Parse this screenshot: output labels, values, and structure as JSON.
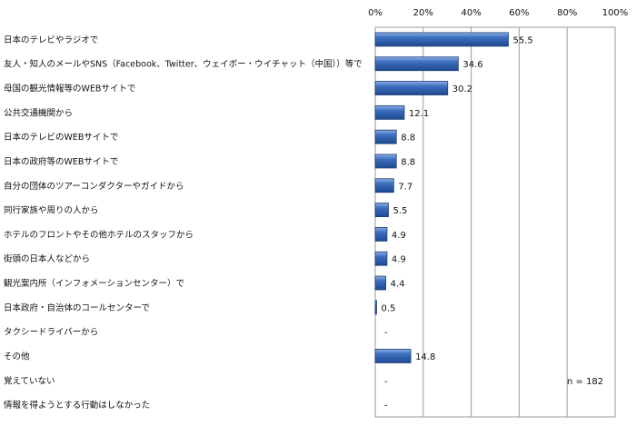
{
  "chart_data": {
    "type": "bar",
    "orientation": "horizontal",
    "categories": [
      "日本のテレビやラジオで",
      "友人・知人のメールやSNS（Facebook、Twitter、ウェイボー・ウイチャット（中国））等で",
      "母国の観光情報等のWEBサイトで",
      "公共交通機関から",
      "日本のテレビのWEBサイトで",
      "日本の政府等のWEBサイトで",
      "自分の団体のツアーコンダクターやガイドから",
      "同行家族や周りの人から",
      "ホテルのフロントやその他ホテルのスタッフから",
      "街頭の日本人などから",
      "観光案内所（インフォメーションセンター）で",
      "日本政府・自治体のコールセンターで",
      "タクシードライバーから",
      "その他",
      "覚えていない",
      "情報を得ようとする行動はしなかった"
    ],
    "values": [
      55.5,
      34.6,
      30.2,
      12.1,
      8.8,
      8.8,
      7.7,
      5.5,
      4.9,
      4.9,
      4.4,
      0.5,
      null,
      14.8,
      null,
      null
    ],
    "value_labels": [
      "55.5",
      "34.6",
      "30.2",
      "12.1",
      "8.8",
      "8.8",
      "7.7",
      "5.5",
      "4.9",
      "4.9",
      "4.4",
      "0.5",
      "-",
      "14.8",
      "-",
      "-"
    ],
    "xlim": [
      0,
      100
    ],
    "xticks": [
      "0%",
      "20%",
      "40%",
      "60%",
      "80%",
      "100%"
    ],
    "note": "n = 182",
    "grid": true,
    "bar_color": "#2f5fa8",
    "bar_edge_color": "#1c3f7a"
  }
}
